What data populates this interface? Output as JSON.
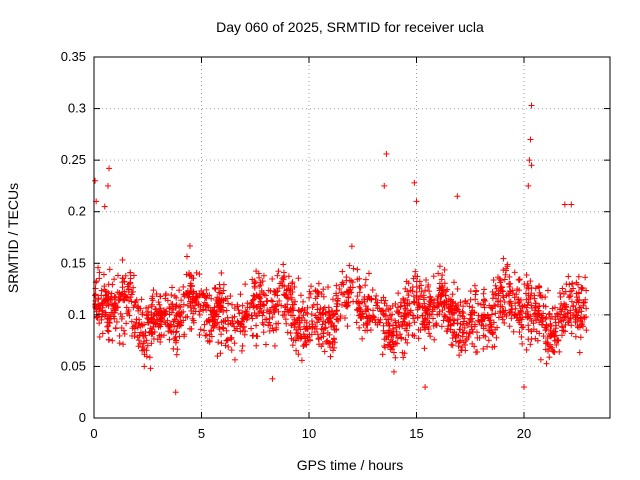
{
  "chart_data": {
    "type": "scatter",
    "title": "Day 060 of 2025, SRMTID for receiver ucla",
    "xlabel": "GPS time / hours",
    "ylabel": "SRMTID / TECUs",
    "xlim": [
      0,
      24
    ],
    "ylim": [
      0,
      0.35
    ],
    "xticks": [
      0,
      5,
      10,
      15,
      20
    ],
    "xtick_labels": [
      "0",
      "5",
      "10",
      "15",
      "20"
    ],
    "yticks": [
      0,
      0.05,
      0.1,
      0.15,
      0.2,
      0.25,
      0.3,
      0.35
    ],
    "ytick_labels": [
      "0",
      "0.05",
      "0.1",
      "0.15",
      "0.2",
      "0.25",
      "0.3",
      "0.35"
    ],
    "grid": true,
    "marker": "plus",
    "marker_color": "#ff0000",
    "x_data_range": [
      0,
      22.9
    ],
    "typical_value_range": [
      0.04,
      0.16
    ],
    "approx_point_count": 2000,
    "outliers": [
      {
        "x": 0.05,
        "y": 0.23
      },
      {
        "x": 0.1,
        "y": 0.21
      },
      {
        "x": 0.7,
        "y": 0.242
      },
      {
        "x": 0.65,
        "y": 0.225
      },
      {
        "x": 0.5,
        "y": 0.205
      },
      {
        "x": 13.6,
        "y": 0.256
      },
      {
        "x": 13.5,
        "y": 0.225
      },
      {
        "x": 14.9,
        "y": 0.228
      },
      {
        "x": 15.0,
        "y": 0.21
      },
      {
        "x": 16.9,
        "y": 0.215
      },
      {
        "x": 20.35,
        "y": 0.303
      },
      {
        "x": 20.3,
        "y": 0.27
      },
      {
        "x": 20.25,
        "y": 0.25
      },
      {
        "x": 20.35,
        "y": 0.245
      },
      {
        "x": 20.2,
        "y": 0.225
      },
      {
        "x": 21.9,
        "y": 0.207
      },
      {
        "x": 22.2,
        "y": 0.207
      },
      {
        "x": 3.8,
        "y": 0.025
      },
      {
        "x": 15.4,
        "y": 0.03
      },
      {
        "x": 20.0,
        "y": 0.03
      },
      {
        "x": 8.3,
        "y": 0.038
      }
    ]
  }
}
